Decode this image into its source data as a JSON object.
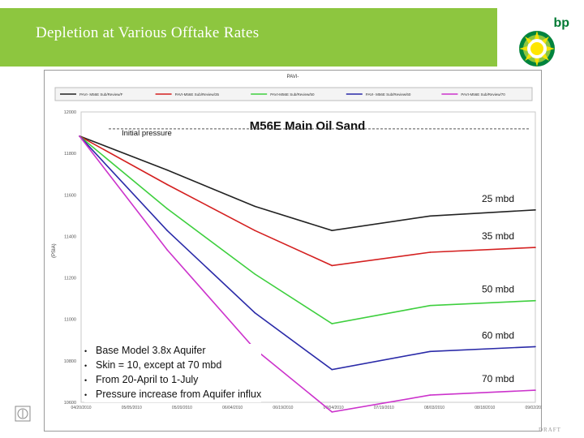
{
  "slide": {
    "title": "Depletion at Various Offtake Rates",
    "logo_text": "bp",
    "draft_label": "DRAFT"
  },
  "bullets": [
    "Base Model 3.8x Aquifer",
    "Skin = 10, except at 70 mbd",
    "From 20-April to 1-July",
    "Pressure increase from Aquifer influx"
  ],
  "colors": {
    "title_bar": "#8dc63f",
    "rate_25": "#222222",
    "rate_35": "#d42020",
    "rate_50": "#3ecf3e",
    "rate_60": "#2a2aa8",
    "rate_70": "#cc33cc"
  },
  "chart_data": {
    "type": "line",
    "window_title": "PAVI-",
    "title": "M56E Main Oil Sand",
    "ylabel": "(PSIA)",
    "ylim": [
      10800,
      12000
    ],
    "y_ticks": [
      "12000",
      "11800",
      "11600",
      "11400",
      "11200",
      "11000",
      "10800",
      "10600"
    ],
    "x_ticks": [
      "04/20/2010",
      "05/05/2010",
      "05/20/2010",
      "06/04/2010",
      "06/19/2010",
      "07/04/2010",
      "07/19/2010",
      "08/03/2010",
      "08/18/2010",
      "09/02/2010"
    ],
    "reference_line": {
      "label": "Initial pressure",
      "y": 11930
    },
    "legend_entries": [
      "PAVI- M56E Sub/Review/F",
      "PAVI-M56E Sub/Review/35",
      "PAVI-M56E Sub/Review/50",
      "PAVI- M56E Sub/Review/60",
      "PAVI-M56E Sub/Review/70"
    ],
    "x": [
      0,
      25,
      50,
      72,
      100,
      130
    ],
    "series": [
      {
        "name": "25 mbd",
        "color": "#222222",
        "values": [
          11900,
          11760,
          11610,
          11510,
          11570,
          11595
        ]
      },
      {
        "name": "35 mbd",
        "color": "#d42020",
        "values": [
          11900,
          11700,
          11510,
          11365,
          11420,
          11440
        ]
      },
      {
        "name": "50 mbd",
        "color": "#3ecf3e",
        "values": [
          11900,
          11600,
          11330,
          11125,
          11200,
          11220
        ]
      },
      {
        "name": "60 mbd",
        "color": "#2a2aa8",
        "values": [
          11900,
          11510,
          11170,
          10935,
          11010,
          11030
        ]
      },
      {
        "name": "70 mbd",
        "color": "#cc33cc",
        "values": [
          11900,
          11430,
          11020,
          10760,
          10830,
          10850
        ]
      }
    ]
  }
}
